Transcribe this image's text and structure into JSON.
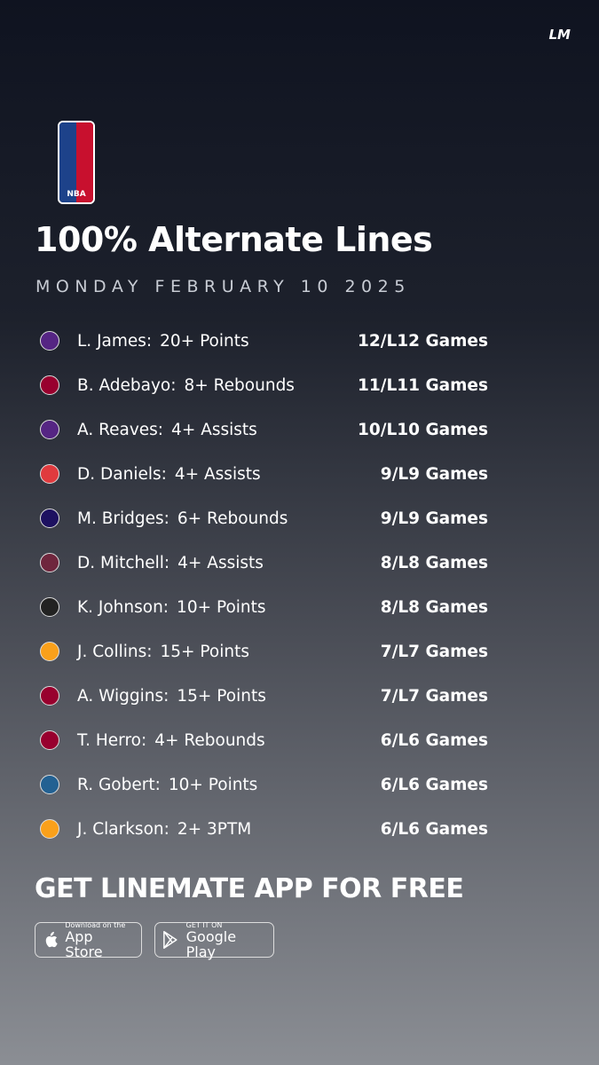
{
  "brand": "LM",
  "badge": "NBA",
  "title": "100% Alternate Lines",
  "date": "MONDAY FEBRUARY 10 2025",
  "rows": [
    {
      "player": "L. James:",
      "prop": "20+ Points",
      "record": "12/L12 Games"
    },
    {
      "player": "B. Adebayo:",
      "prop": "8+ Rebounds",
      "record": "11/L11 Games"
    },
    {
      "player": "A. Reaves:",
      "prop": "4+ Assists",
      "record": "10/L10 Games"
    },
    {
      "player": "D. Daniels:",
      "prop": "4+ Assists",
      "record": "9/L9 Games"
    },
    {
      "player": "M. Bridges:",
      "prop": "6+ Rebounds",
      "record": "9/L9 Games"
    },
    {
      "player": "D. Mitchell:",
      "prop": "4+ Assists",
      "record": "8/L8 Games"
    },
    {
      "player": "K. Johnson:",
      "prop": "10+ Points",
      "record": "8/L8 Games"
    },
    {
      "player": "J. Collins:",
      "prop": "15+ Points",
      "record": "7/L7 Games"
    },
    {
      "player": "A. Wiggins:",
      "prop": "15+ Points",
      "record": "7/L7 Games"
    },
    {
      "player": "T. Herro:",
      "prop": "4+ Rebounds",
      "record": "6/L6 Games"
    },
    {
      "player": "R. Gobert:",
      "prop": "10+ Points",
      "record": "6/L6 Games"
    },
    {
      "player": "J. Clarkson:",
      "prop": "2+ 3PTM",
      "record": "6/L6 Games"
    }
  ],
  "cta": "GET LINEMATE APP FOR FREE",
  "app_store": {
    "small": "Download on the",
    "big": "App Store"
  },
  "google_play": {
    "small": "GET IT ON",
    "big": "Google Play"
  }
}
